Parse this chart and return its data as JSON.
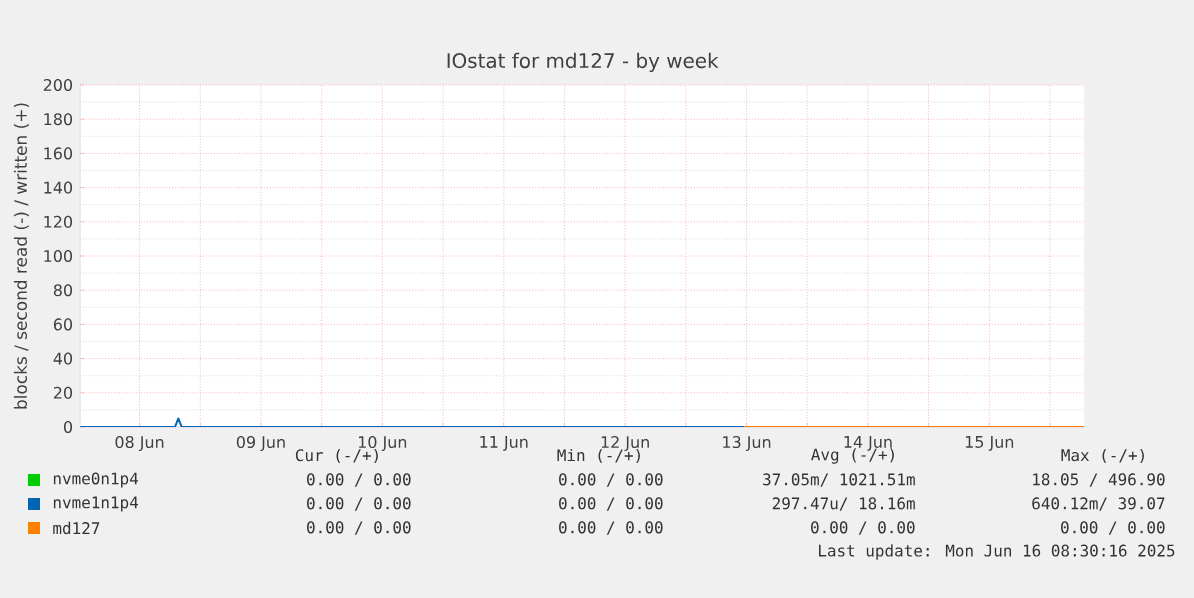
{
  "chart_data": {
    "type": "line",
    "title": "IOstat for md127 - by week",
    "ylabel": "blocks / second read (-) / written (+)",
    "x": [
      "2025-06-08T00:15",
      "2025-06-08T19:00",
      "2025-06-08T19:40",
      "2025-06-08T20:20",
      "2025-06-16T06:40"
    ],
    "series": [
      {
        "name": "nvme0n1p4",
        "color": "#00cc00",
        "values": [
          null,
          null,
          null,
          null,
          null
        ]
      },
      {
        "name": "nvme1n1p4",
        "color": "#0066b3",
        "values": [
          0,
          0,
          5,
          0,
          0
        ]
      },
      {
        "name": "md127",
        "color": "#ff8000",
        "x": [
          "2025-06-13T11:30",
          "2025-06-16T06:40"
        ],
        "values": [
          0,
          0
        ]
      }
    ],
    "xlim": [
      "2025-06-08T00:15",
      "2025-06-16T06:45"
    ],
    "xticks": [
      {
        "value": "2025-06-08T12:00",
        "label": "08 Jun"
      },
      {
        "value": "2025-06-09T12:00",
        "label": "09 Jun"
      },
      {
        "value": "2025-06-10T12:00",
        "label": "10 Jun"
      },
      {
        "value": "2025-06-11T12:00",
        "label": "11 Jun"
      },
      {
        "value": "2025-06-12T12:00",
        "label": "12 Jun"
      },
      {
        "value": "2025-06-13T12:00",
        "label": "13 Jun"
      },
      {
        "value": "2025-06-14T12:00",
        "label": "14 Jun"
      },
      {
        "value": "2025-06-15T12:00",
        "label": "15 Jun"
      },
      {
        "value": "2025-06-09T00:00",
        "label": null
      },
      {
        "value": "2025-06-10T00:00",
        "label": null
      },
      {
        "value": "2025-06-11T00:00",
        "label": null
      },
      {
        "value": "2025-06-12T00:00",
        "label": null
      },
      {
        "value": "2025-06-13T00:00",
        "label": null
      },
      {
        "value": "2025-06-14T00:00",
        "label": null
      },
      {
        "value": "2025-06-15T00:00",
        "label": null
      },
      {
        "value": "2025-06-16T00:00",
        "label": null
      }
    ],
    "ylim": [
      0,
      200
    ],
    "yticks": [
      0,
      20,
      40,
      60,
      80,
      100,
      120,
      140,
      160,
      180,
      200
    ],
    "grid": true,
    "legend": "bottom left",
    "marker": "none",
    "line_style": "solid",
    "annotations": [
      "Cur (-/+)",
      "Min (-/+)",
      "Avg (-/+)",
      "Max (-/+)",
      "0.00 / 0.00",
      "0.00 / 0.00",
      "37.05m/ 1021.51m",
      "18.05 / 496.90",
      "0.00 / 0.00",
      "0.00 / 0.00",
      "297.47u/ 18.16m",
      "640.12m/ 39.07",
      "0.00 / 0.00",
      "0.00 / 0.00",
      "0.00 / 0.00",
      "0.00 / 0.00",
      "Last update: Mon Jun 16 08:30:16 2025"
    ]
  }
}
